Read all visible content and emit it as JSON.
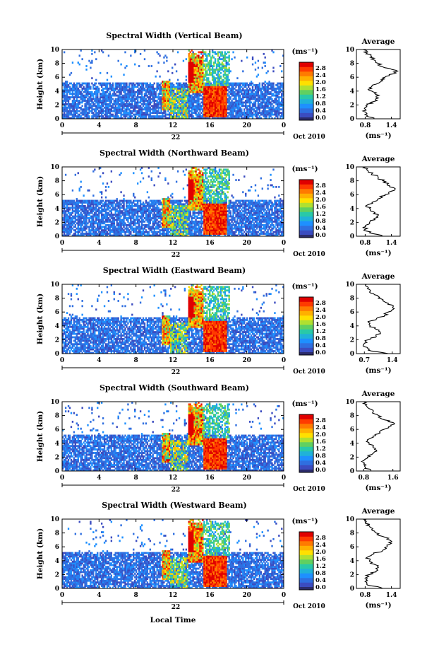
{
  "x_axis_label": "Local Time",
  "date_label": "Oct 2010",
  "day_label": "22",
  "height_label": "Height (km)",
  "colorbar": {
    "unit": "(ms⁻¹)",
    "ticks": [
      "0.0",
      "0.4",
      "0.8",
      "1.2",
      "1.6",
      "2.0",
      "2.4",
      "2.8"
    ],
    "colors": [
      "#3b4cc0",
      "#2f6fe0",
      "#1e90ff",
      "#20b2d8",
      "#29c9a8",
      "#60d060",
      "#b0e030",
      "#ffe000",
      "#ffb000",
      "#ff7a00",
      "#ff3a00",
      "#e00000"
    ]
  },
  "chart_data": [
    {
      "type": "heatmap",
      "title": "Spectral Width (Vertical Beam)",
      "xlabel": "",
      "ylabel": "Height (km)",
      "xlim": [
        0,
        24
      ],
      "ylim": [
        0,
        10
      ],
      "x_ticks": [
        "0",
        "4",
        "8",
        "12",
        "16",
        "20",
        "0"
      ],
      "y_ticks": [
        "0",
        "2",
        "4",
        "6",
        "8",
        "10"
      ],
      "colorbar_range": [
        0.0,
        2.8
      ],
      "average_profile": {
        "title": "Average",
        "xlabel": "(ms⁻¹)",
        "x_ticks": [
          "0.8",
          "1.4"
        ],
        "xlim": [
          0.6,
          1.6
        ],
        "heights": [
          0,
          0.5,
          1,
          1.5,
          2,
          2.5,
          3,
          3.5,
          4,
          4.5,
          5,
          5.5,
          6,
          6.5,
          7,
          7.5,
          8,
          8.5,
          9,
          9.5,
          10
        ],
        "values": [
          1.0,
          0.85,
          0.8,
          0.78,
          0.85,
          1.0,
          1.1,
          1.05,
          0.95,
          0.9,
          1.05,
          1.2,
          1.25,
          1.45,
          1.5,
          1.2,
          1.1,
          1.0,
          0.95,
          0.85,
          0.75
        ]
      }
    },
    {
      "type": "heatmap",
      "title": "Spectral Width (Northward Beam)",
      "xlabel": "",
      "ylabel": "Height (km)",
      "xlim": [
        0,
        24
      ],
      "ylim": [
        0,
        10
      ],
      "x_ticks": [
        "0",
        "4",
        "8",
        "12",
        "16",
        "20",
        "0"
      ],
      "y_ticks": [
        "0",
        "2",
        "4",
        "6",
        "8",
        "10"
      ],
      "colorbar_range": [
        0.0,
        2.8
      ],
      "average_profile": {
        "title": "Average",
        "xlabel": "(ms⁻¹)",
        "x_ticks": [
          "0.8",
          "1.4"
        ],
        "xlim": [
          0.6,
          1.6
        ],
        "heights": [
          0,
          0.5,
          1,
          1.5,
          2,
          2.5,
          3,
          3.5,
          4,
          4.5,
          5,
          5.5,
          6,
          6.5,
          7,
          7.5,
          8,
          8.5,
          9,
          9.5,
          10
        ],
        "values": [
          1.2,
          0.9,
          0.8,
          0.8,
          0.9,
          1.0,
          1.1,
          1.0,
          0.9,
          0.85,
          1.0,
          1.15,
          1.25,
          1.4,
          1.45,
          1.3,
          1.2,
          1.1,
          0.95,
          0.85,
          0.8
        ]
      }
    },
    {
      "type": "heatmap",
      "title": "Spectral Width (Eastward Beam)",
      "xlabel": "",
      "ylabel": "Height (km)",
      "xlim": [
        0,
        24
      ],
      "ylim": [
        0,
        10
      ],
      "x_ticks": [
        "0",
        "4",
        "8",
        "12",
        "16",
        "20",
        "0"
      ],
      "y_ticks": [
        "0",
        "2",
        "4",
        "6",
        "8",
        "10"
      ],
      "colorbar_range": [
        0.0,
        2.8
      ],
      "average_profile": {
        "title": "Average",
        "xlabel": "(ms⁻¹)",
        "x_ticks": [
          "0.7",
          "1.4"
        ],
        "xlim": [
          0.5,
          1.6
        ],
        "heights": [
          0,
          0.5,
          1,
          1.5,
          2,
          2.5,
          3,
          3.5,
          4,
          4.5,
          5,
          5.5,
          6,
          6.5,
          7,
          7.5,
          8,
          8.5,
          9,
          9.5,
          10
        ],
        "values": [
          1.3,
          0.8,
          0.7,
          0.7,
          0.8,
          1.0,
          1.1,
          1.0,
          0.85,
          0.8,
          1.0,
          1.2,
          1.3,
          1.45,
          1.4,
          1.2,
          1.05,
          0.95,
          0.85,
          0.8,
          0.75
        ]
      }
    },
    {
      "type": "heatmap",
      "title": "Spectral Width (Southward Beam)",
      "xlabel": "",
      "ylabel": "Height (km)",
      "xlim": [
        0,
        24
      ],
      "ylim": [
        0,
        10
      ],
      "x_ticks": [
        "0",
        "4",
        "8",
        "12",
        "16",
        "20",
        "0"
      ],
      "y_ticks": [
        "0",
        "2",
        "4",
        "6",
        "8",
        "10"
      ],
      "colorbar_range": [
        0.0,
        2.8
      ],
      "average_profile": {
        "title": "Average",
        "xlabel": "(ms⁻¹)",
        "x_ticks": [
          "0.8",
          "1.6"
        ],
        "xlim": [
          0.6,
          1.8
        ],
        "heights": [
          0,
          0.5,
          1,
          1.5,
          2,
          2.5,
          3,
          3.5,
          4,
          4.5,
          5,
          5.5,
          6,
          6.5,
          7,
          7.5,
          8,
          8.5,
          9,
          9.5,
          10
        ],
        "values": [
          1.0,
          0.85,
          0.8,
          0.8,
          0.9,
          1.05,
          1.15,
          1.05,
          0.95,
          0.9,
          1.05,
          1.25,
          1.35,
          1.55,
          1.6,
          1.3,
          1.2,
          1.05,
          0.95,
          0.85,
          0.8
        ]
      }
    },
    {
      "type": "heatmap",
      "title": "Spectral Width (Westward Beam)",
      "xlabel": "Local Time",
      "ylabel": "Height (km)",
      "xlim": [
        0,
        24
      ],
      "ylim": [
        0,
        10
      ],
      "x_ticks": [
        "0",
        "4",
        "8",
        "12",
        "16",
        "20",
        "0"
      ],
      "y_ticks": [
        "0",
        "2",
        "4",
        "6",
        "8",
        "10"
      ],
      "colorbar_range": [
        0.0,
        2.8
      ],
      "average_profile": {
        "title": "Average",
        "xlabel": "(ms⁻¹)",
        "x_ticks": [
          "0.8",
          "1.4"
        ],
        "xlim": [
          0.6,
          1.6
        ],
        "heights": [
          0,
          0.5,
          1,
          1.5,
          2,
          2.5,
          3,
          3.5,
          4,
          4.5,
          5,
          5.5,
          6,
          6.5,
          7,
          7.5,
          8,
          8.5,
          9,
          9.5,
          10
        ],
        "values": [
          1.2,
          0.85,
          0.8,
          0.8,
          0.9,
          1.05,
          1.1,
          1.0,
          0.9,
          0.85,
          1.0,
          1.2,
          1.3,
          1.4,
          1.35,
          1.2,
          1.05,
          0.95,
          0.9,
          0.8,
          0.75
        ]
      }
    }
  ]
}
